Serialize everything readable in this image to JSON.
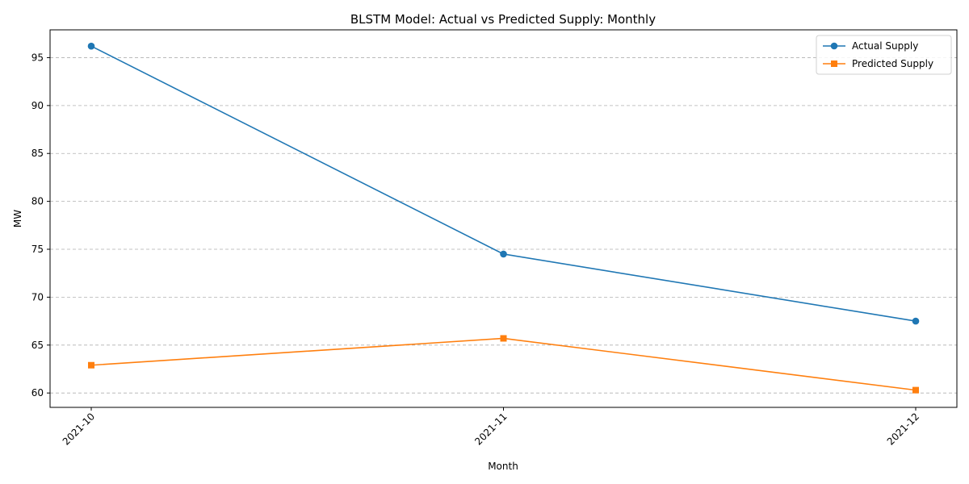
{
  "chart_data": {
    "type": "line",
    "title": "BLSTM Model: Actual vs Predicted Supply: Monthly",
    "xlabel": "Month",
    "ylabel": "MW",
    "categories": [
      "2021-10",
      "2021-11",
      "2021-12"
    ],
    "series": [
      {
        "name": "Actual Supply",
        "values": [
          96.2,
          74.5,
          67.5
        ],
        "color": "#1f77b4",
        "marker": "circle"
      },
      {
        "name": "Predicted Supply",
        "values": [
          62.9,
          65.7,
          60.3
        ],
        "color": "#ff7f0e",
        "marker": "square"
      }
    ],
    "ylim": [
      58.5,
      97.9
    ],
    "yticks": [
      60,
      65,
      70,
      75,
      80,
      85,
      90,
      95
    ],
    "grid": "y-dashed",
    "legend_position": "top-right"
  }
}
